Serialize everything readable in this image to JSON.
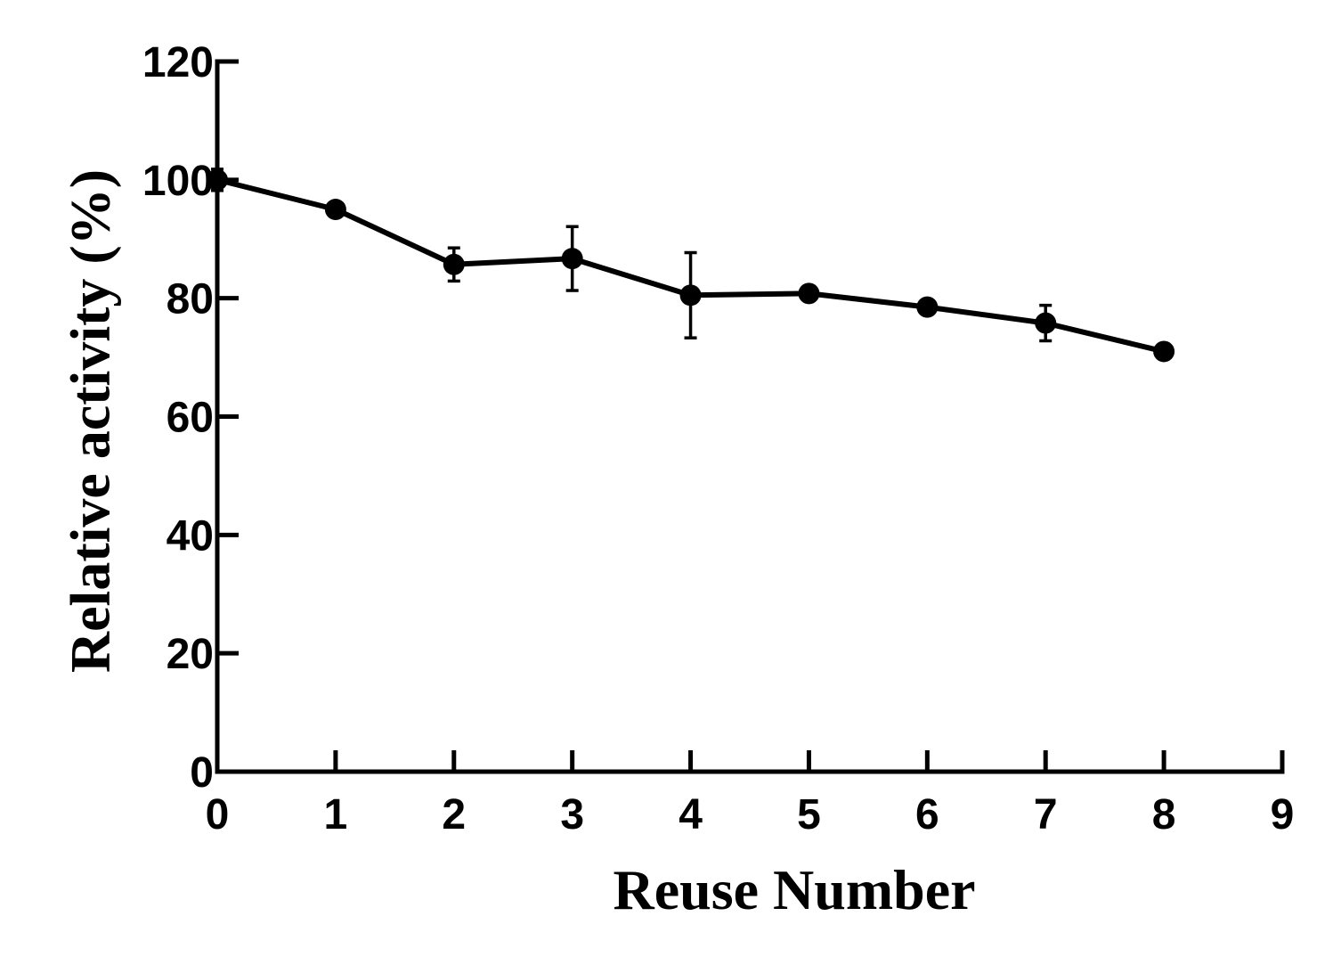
{
  "chart_data": {
    "type": "line",
    "xlabel": "Reuse Number",
    "ylabel": "Relative activity (%)",
    "xlim": [
      0,
      9
    ],
    "ylim": [
      0,
      120
    ],
    "x_ticks": [
      "0",
      "1",
      "2",
      "3",
      "4",
      "5",
      "6",
      "7",
      "8",
      "9"
    ],
    "y_ticks": [
      "0",
      "20",
      "40",
      "60",
      "80",
      "100",
      "120"
    ],
    "grid": false,
    "legend": "none",
    "series": [
      {
        "x": [
          0,
          1,
          2,
          3,
          4,
          5,
          6,
          7,
          8
        ],
        "y": [
          100,
          95,
          85.7,
          86.7,
          80.5,
          80.8,
          78.5,
          75.8,
          71
        ],
        "error": [
          1.8,
          0.8,
          2.8,
          5.4,
          7.2,
          0.6,
          0.5,
          3.0,
          0.5
        ],
        "color": "#000000"
      }
    ]
  }
}
